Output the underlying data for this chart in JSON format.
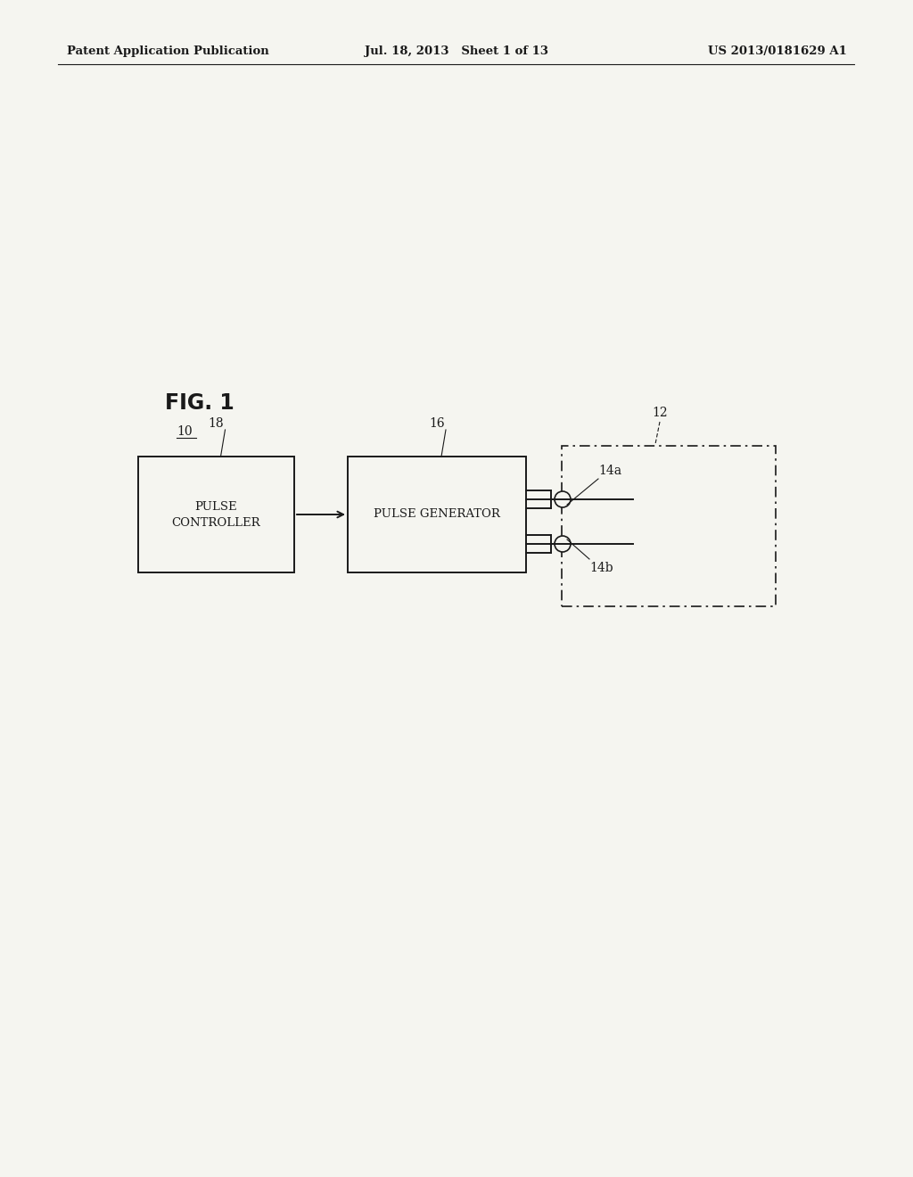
{
  "bg_color": "#f5f5f0",
  "header_left": "Patent Application Publication",
  "header_mid": "Jul. 18, 2013   Sheet 1 of 13",
  "header_right": "US 2013/0181629 A1",
  "fig_label": "FIG. 1",
  "label_10": "10",
  "label_12": "12",
  "label_14a": "14a",
  "label_14b": "14b",
  "label_16": "16",
  "label_18": "18",
  "box_pulse_controller": "PULSE\nCONTROLLER",
  "box_pulse_generator": "PULSE GENERATOR",
  "line_color": "#1a1a1a",
  "text_color": "#1a1a1a",
  "font_size_header": 9.5,
  "font_size_label": 10,
  "font_size_fig": 17,
  "font_size_box": 9.5
}
